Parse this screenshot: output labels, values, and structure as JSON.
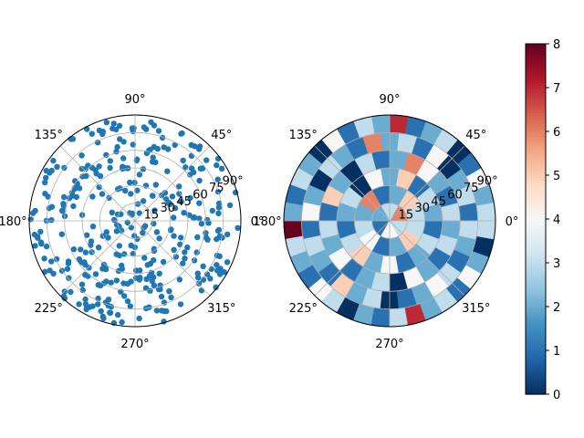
{
  "figure": {
    "background": "#ffffff"
  },
  "chart_data": [
    {
      "type": "scatter",
      "projection": "polar",
      "theta_tick_labels": [
        "0°",
        "45°",
        "90°",
        "135°",
        "180°",
        "225°",
        "270°",
        "315°"
      ],
      "r_tick_labels": [
        "15",
        "30",
        "45",
        "60",
        "75",
        "90°"
      ],
      "rlim": [
        0,
        90
      ],
      "grid": true,
      "marker_color": "#1f77b4",
      "point_count": 360,
      "note_points": "points scattered approximately uniformly over the full disc; azimuth 0-360 deg, radius 0-90"
    },
    {
      "type": "heatmap",
      "projection": "polar",
      "theta_tick_labels": [
        "0°",
        "45°",
        "90°",
        "135°",
        "180°",
        "225°",
        "270°",
        "315°"
      ],
      "r_tick_labels": [
        "15",
        "30",
        "45",
        "60",
        "75",
        "90°"
      ],
      "rlim": [
        0,
        90
      ],
      "radial_bin_edges": [
        0,
        15,
        30,
        45,
        60,
        75,
        90
      ],
      "azimuth_bins_per_ring": [
        6,
        12,
        18,
        24,
        30,
        36
      ],
      "colormap": "RdBu_r",
      "vmin": 0,
      "vmax": 8,
      "colorbar": {
        "ticks": [
          "0",
          "1",
          "2",
          "3",
          "4",
          "5",
          "6",
          "7",
          "8"
        ],
        "range": [
          0,
          8
        ]
      },
      "counts": [
        [
          6,
          3,
          2,
          1,
          4,
          3
        ],
        [
          3,
          5,
          2,
          1,
          6,
          2,
          3,
          4,
          1,
          2,
          5,
          3
        ],
        [
          2,
          3,
          1,
          5,
          2,
          4,
          0,
          3,
          2,
          1,
          3,
          5,
          2,
          4,
          1,
          2,
          3,
          1
        ],
        [
          3,
          1,
          2,
          4,
          6,
          2,
          1,
          3,
          0,
          2,
          5,
          1,
          3,
          2,
          4,
          1,
          2,
          3,
          0,
          4,
          2,
          1,
          3,
          2
        ],
        [
          1,
          3,
          2,
          0,
          4,
          1,
          3,
          2,
          6,
          1,
          2,
          3,
          0,
          2,
          4,
          1,
          3,
          2,
          1,
          5,
          2,
          3,
          0,
          1,
          2,
          4,
          3,
          1,
          2,
          3
        ],
        [
          3,
          2,
          4,
          1,
          0,
          3,
          2,
          1,
          7,
          2,
          3,
          1,
          4,
          0,
          2,
          3,
          1,
          2,
          8,
          3,
          2,
          1,
          4,
          3,
          0,
          2,
          1,
          3,
          7,
          2,
          3,
          1,
          4,
          2,
          0,
          3
        ]
      ]
    }
  ]
}
